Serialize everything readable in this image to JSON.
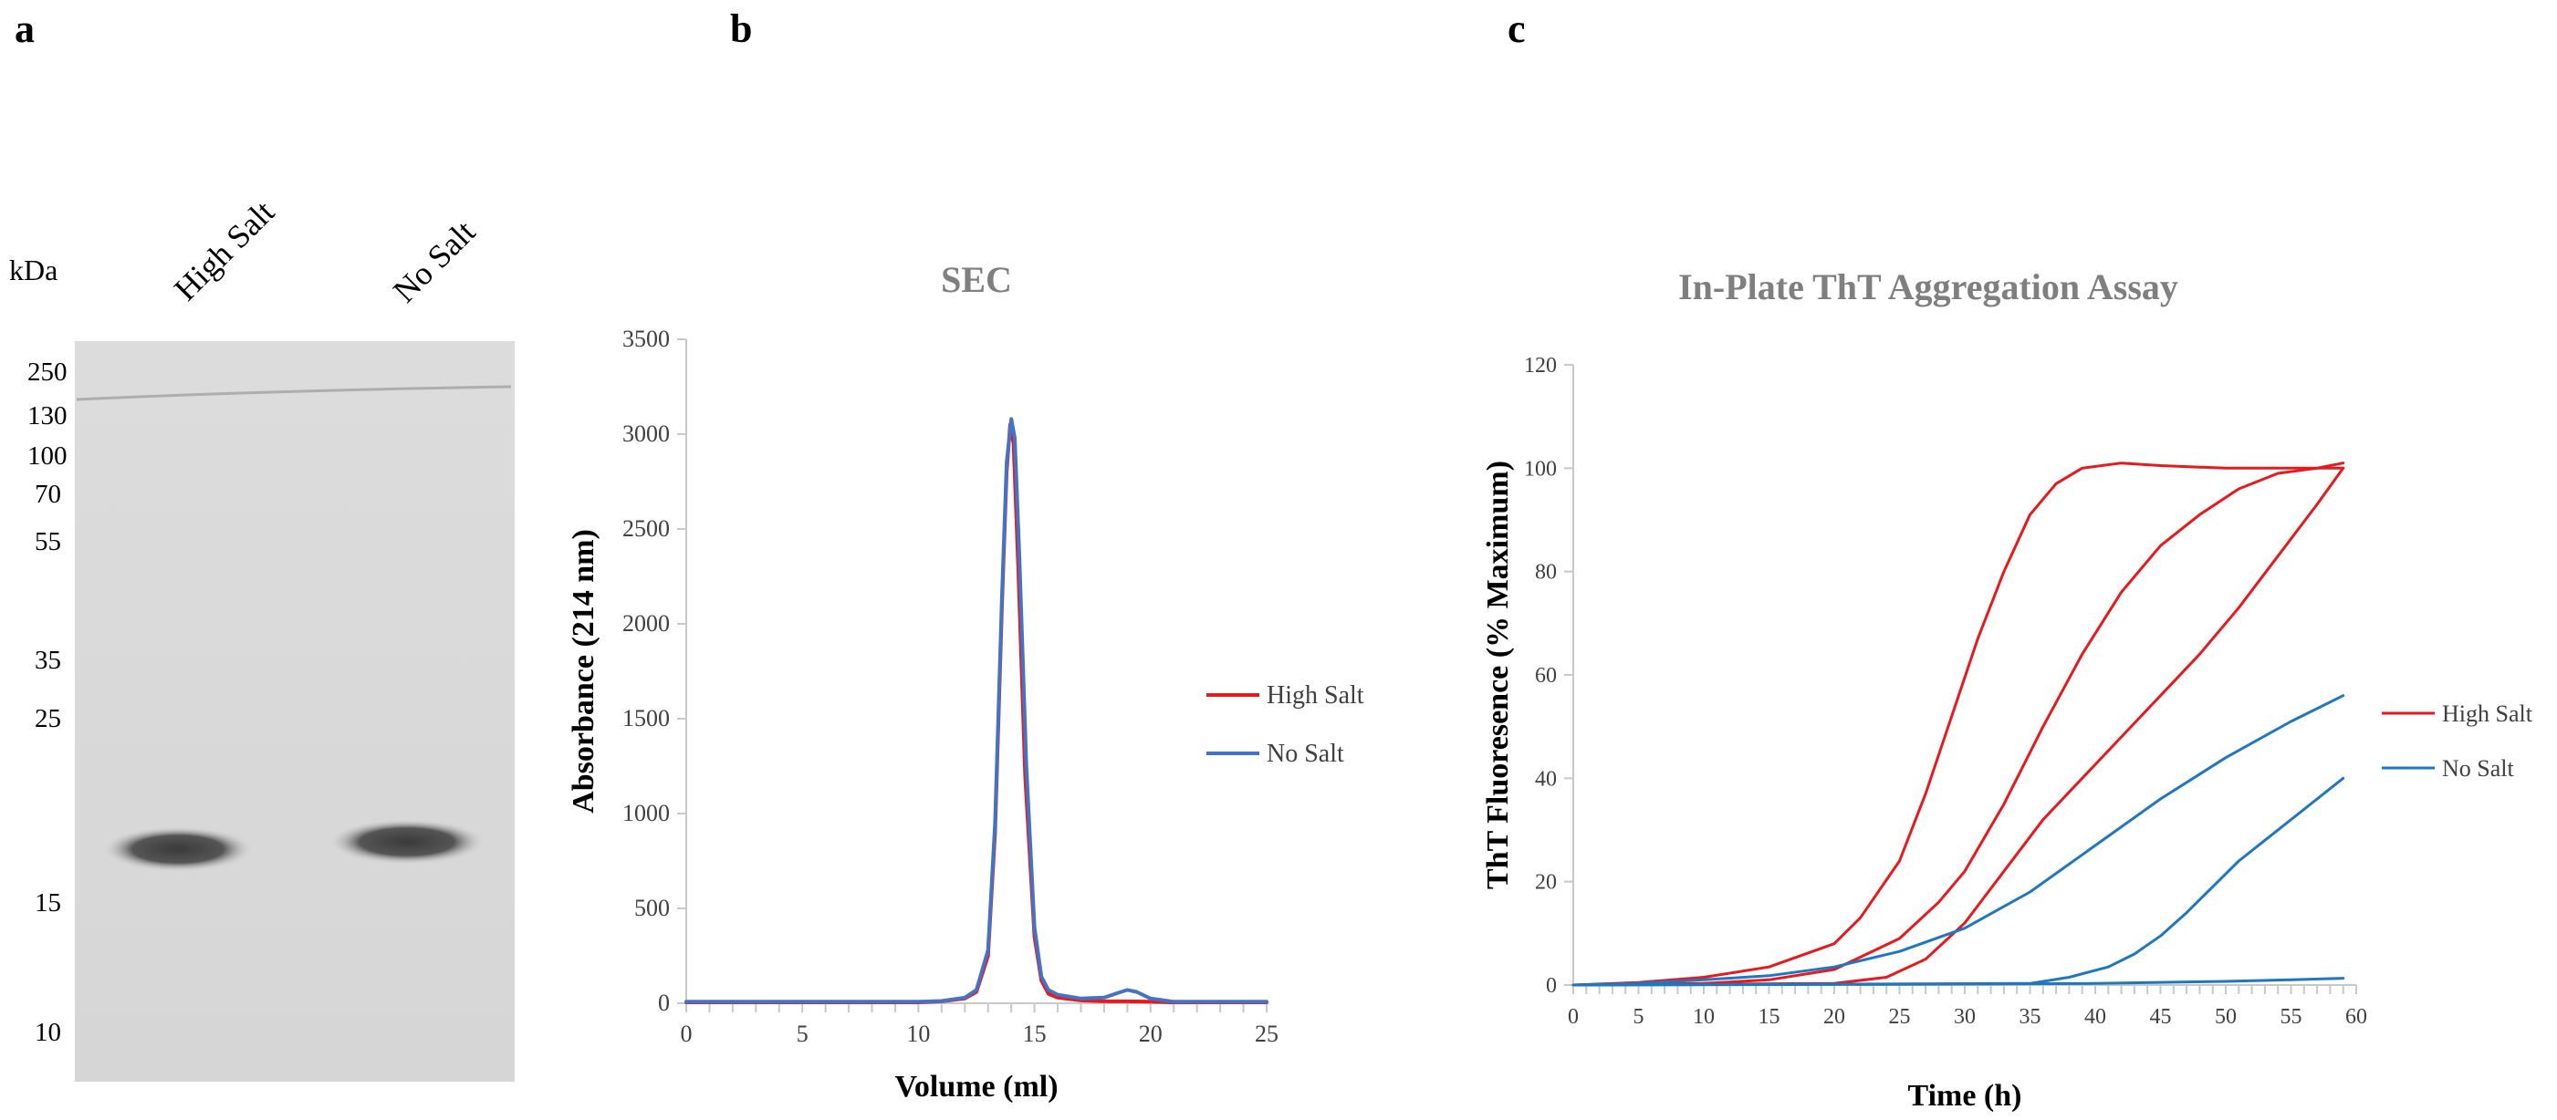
{
  "panels": {
    "a": "a",
    "b": "b",
    "c": "c"
  },
  "gel": {
    "unit_label": "kDa",
    "lanes": [
      "High Salt",
      "No Salt"
    ],
    "markers": [
      "250",
      "130",
      "100",
      "70",
      "55",
      "35",
      "25",
      "15",
      "10"
    ]
  },
  "chart_data": [
    {
      "type": "line",
      "title": "SEC",
      "xlabel": "Volume (ml)",
      "ylabel": "Absorbance (214 nm)",
      "xlim": [
        0,
        25
      ],
      "ylim": [
        0,
        3500
      ],
      "xticks": [
        0,
        5,
        10,
        15,
        20,
        25
      ],
      "yticks": [
        0,
        500,
        1000,
        1500,
        2000,
        2500,
        3000,
        3500
      ],
      "grid": false,
      "legend_position": "right",
      "series": [
        {
          "name": "High Salt",
          "color": "#e8191c",
          "x": [
            0,
            10,
            11,
            12,
            12.5,
            13,
            13.3,
            13.6,
            13.8,
            13.95,
            14.1,
            14.3,
            14.6,
            15,
            15.3,
            15.6,
            16,
            17,
            18,
            19,
            20,
            21,
            25
          ],
          "y": [
            5,
            5,
            10,
            25,
            60,
            250,
            900,
            2100,
            2800,
            3050,
            2950,
            2300,
            1200,
            350,
            120,
            50,
            30,
            15,
            10,
            10,
            8,
            5,
            5
          ]
        },
        {
          "name": "No Salt",
          "color": "#4472c4",
          "x": [
            0,
            10,
            11,
            12,
            12.5,
            13,
            13.3,
            13.6,
            13.8,
            14.0,
            14.15,
            14.35,
            14.65,
            15,
            15.3,
            15.6,
            16,
            17,
            18,
            18.6,
            19,
            19.4,
            20,
            21,
            25
          ],
          "y": [
            8,
            8,
            12,
            30,
            70,
            280,
            950,
            2150,
            2850,
            3080,
            2980,
            2350,
            1250,
            400,
            140,
            70,
            45,
            25,
            30,
            55,
            70,
            60,
            25,
            8,
            8
          ]
        }
      ]
    },
    {
      "type": "line",
      "title": "In-Plate ThT Aggregation Assay",
      "xlabel": "Time (h)",
      "ylabel": "ThT Fluoresence (% Maximum)",
      "xlim": [
        0,
        60
      ],
      "ylim": [
        0,
        120
      ],
      "xticks": [
        0,
        5,
        10,
        15,
        20,
        25,
        30,
        35,
        40,
        45,
        50,
        55,
        60
      ],
      "yticks": [
        0,
        20,
        40,
        60,
        80,
        100,
        120
      ],
      "grid": false,
      "legend_position": "right",
      "legend": [
        {
          "name": "High Salt",
          "color": "#e8191c"
        },
        {
          "name": "No Salt",
          "color": "#1f77c2"
        }
      ],
      "series": [
        {
          "name": "High Salt",
          "color": "#e8191c",
          "x": [
            0,
            5,
            10,
            15,
            20,
            22,
            25,
            27,
            29,
            31,
            33,
            35,
            37,
            39,
            42,
            45,
            50,
            55,
            59
          ],
          "y": [
            0,
            0.5,
            1.5,
            3.5,
            8,
            13,
            24,
            37,
            52,
            67,
            80,
            91,
            97,
            100,
            101,
            100.5,
            100,
            100,
            100
          ]
        },
        {
          "name": "High Salt",
          "color": "#e8191c",
          "x": [
            0,
            10,
            15,
            20,
            25,
            28,
            30,
            33,
            36,
            39,
            42,
            45,
            48,
            51,
            54,
            57,
            59
          ],
          "y": [
            0,
            0.3,
            1,
            3,
            9,
            16,
            22,
            35,
            50,
            64,
            76,
            85,
            91,
            96,
            99,
            100,
            101
          ]
        },
        {
          "name": "High Salt",
          "color": "#e8191c",
          "x": [
            0,
            20,
            24,
            27,
            30,
            33,
            36,
            39,
            42,
            45,
            48,
            51,
            54,
            57,
            59
          ],
          "y": [
            0,
            0.3,
            1.5,
            5,
            12,
            22,
            32,
            40,
            48,
            56,
            64,
            73,
            83,
            93,
            100
          ]
        },
        {
          "name": "No Salt",
          "color": "#1f77c2",
          "x": [
            0,
            5,
            10,
            15,
            20,
            25,
            30,
            35,
            40,
            45,
            50,
            55,
            59
          ],
          "y": [
            0,
            0.3,
            1,
            1.8,
            3.5,
            6.5,
            11,
            18,
            27,
            36,
            44,
            51,
            56
          ]
        },
        {
          "name": "No Salt",
          "color": "#1f77c2",
          "x": [
            0,
            35,
            38,
            41,
            43,
            45,
            47,
            49,
            51,
            53,
            55,
            57,
            59
          ],
          "y": [
            0,
            0.3,
            1.5,
            3.5,
            6,
            9.5,
            14,
            19,
            24,
            28,
            32,
            36,
            40
          ]
        },
        {
          "name": "No Salt",
          "color": "#1f77c2",
          "x": [
            0,
            20,
            40,
            50,
            55,
            59
          ],
          "y": [
            0,
            0.1,
            0.3,
            0.7,
            1,
            1.3
          ]
        }
      ]
    }
  ]
}
